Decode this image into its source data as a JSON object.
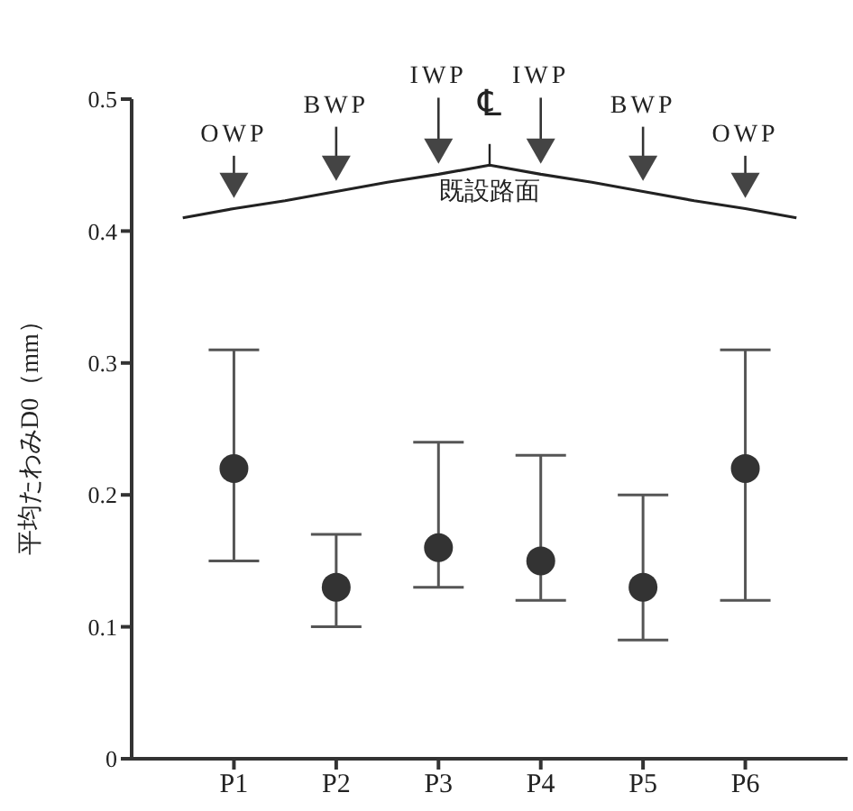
{
  "chart_data": {
    "type": "scatter",
    "ylabel": "平均たわみD0（mm）",
    "categories": [
      null,
      "P1",
      null,
      "P2",
      null,
      "P3",
      null,
      "P4",
      null,
      "P5",
      null,
      "P6",
      null,
      null
    ],
    "series": [
      {
        "color": "#333333",
        "values": [
          null,
          0.22,
          null,
          0.13,
          null,
          0.16,
          null,
          0.15,
          null,
          0.13,
          null,
          0.22,
          null,
          null
        ],
        "errors": [
          null,
          [
            0.15,
            0.31
          ],
          null,
          [
            0.1,
            0.17
          ],
          null,
          [
            0.13,
            0.24
          ],
          null,
          [
            0.12,
            0.23
          ],
          null,
          [
            0.09,
            0.2
          ],
          null,
          [
            0.12,
            0.31
          ],
          null,
          null
        ]
      },
      {
        "type": "line",
        "color": "#222222",
        "marker": "none",
        "values": [
          0.41,
          0.417,
          0.423,
          0.43,
          0.437,
          0.443,
          0.45,
          0.443,
          0.437,
          0.43,
          0.423,
          0.417,
          0.41,
          null
        ]
      }
    ],
    "ylim": [
      0,
      0.5
    ],
    "yticks": [
      0,
      0.1,
      0.2,
      0.3,
      0.4,
      0.5
    ],
    "grid": false,
    "legend": false,
    "marker": "circle",
    "annotations": [
      "OWP",
      "BWP",
      "IWP",
      "℄",
      "IWP",
      "BWP",
      "OWP",
      "既設路面"
    ]
  }
}
